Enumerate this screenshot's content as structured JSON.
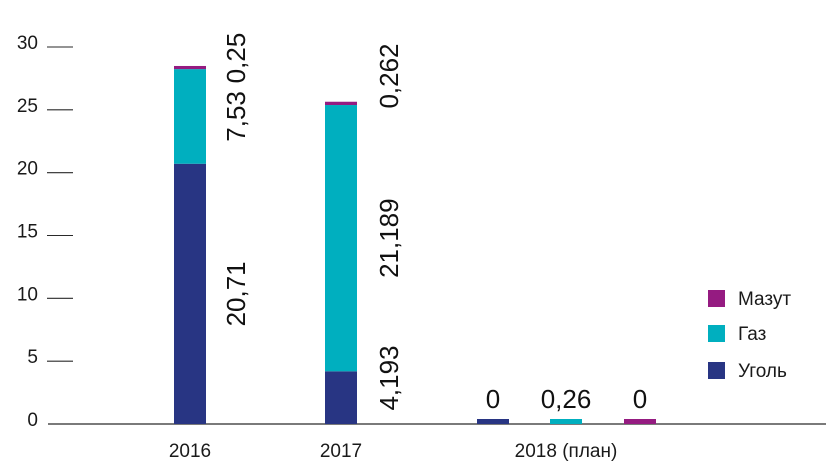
{
  "chart_data": {
    "type": "bar",
    "stacked": true,
    "title": "",
    "xlabel": "",
    "ylabel": "",
    "ylim": [
      0,
      30
    ],
    "yticks": [
      0,
      5,
      10,
      15,
      20,
      25,
      30
    ],
    "ytick_labels": [
      "0",
      "5",
      "10",
      "15",
      "20",
      "25",
      "30"
    ],
    "categories": [
      "2016",
      "2017",
      "2018 (план)"
    ],
    "series": [
      {
        "name": "Уголь",
        "color": "#283583",
        "values": [
          20.71,
          4.193,
          0
        ]
      },
      {
        "name": "Газ",
        "color": "#00afbf",
        "values": [
          7.53,
          21.189,
          0.26
        ]
      },
      {
        "name": "Мазут",
        "color": "#951b81",
        "values": [
          0.25,
          0.262,
          0
        ]
      }
    ],
    "stack_labels": [
      [
        "20,71",
        "7,53",
        "0,25"
      ],
      [
        "4,193",
        "21,189",
        "0,262"
      ]
    ],
    "plan_labels": [
      "0",
      "0,26",
      "0"
    ],
    "legend_position": "right",
    "legend": [
      "Мазут",
      "Газ",
      "Уголь"
    ],
    "grid": false
  }
}
